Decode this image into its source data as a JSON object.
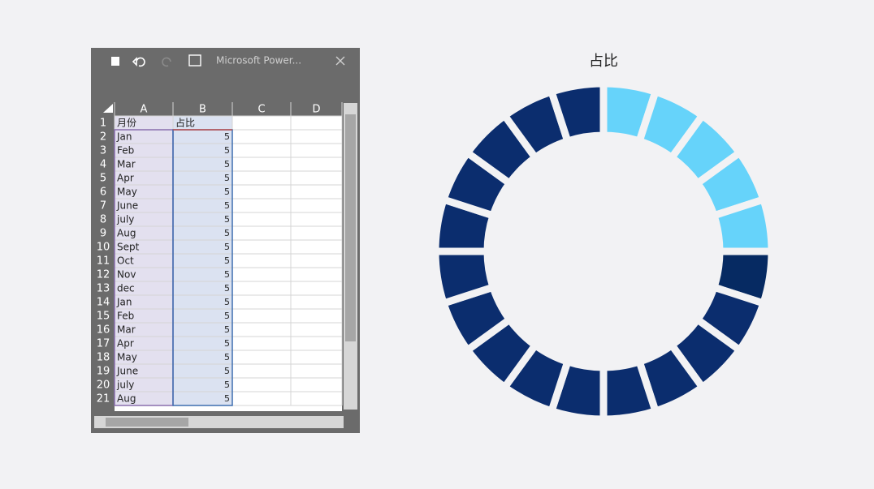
{
  "window": {
    "title": "Microsoft Power..."
  },
  "sheet": {
    "columns": [
      "A",
      "B",
      "C",
      "D"
    ],
    "row_numbers": [
      1,
      2,
      3,
      4,
      5,
      6,
      7,
      8,
      9,
      10,
      11,
      12,
      13,
      14,
      15,
      16,
      17,
      18,
      19,
      20,
      21
    ],
    "headers": [
      "月份",
      "占比"
    ]
  },
  "chart_data": {
    "type": "doughnut",
    "title": "占比",
    "categories": [
      "Jan",
      "Feb",
      "Mar",
      "Apr",
      "May",
      "June",
      "july",
      "Aug",
      "Sept",
      "Oct",
      "Nov",
      "dec",
      "Jan",
      "Feb",
      "Mar",
      "Apr",
      "May",
      "June",
      "july",
      "Aug"
    ],
    "values": [
      5,
      5,
      5,
      5,
      5,
      5,
      5,
      5,
      5,
      5,
      5,
      5,
      5,
      5,
      5,
      5,
      5,
      5,
      5,
      5
    ],
    "colors": [
      "#66d3fa",
      "#66d3fa",
      "#66d3fa",
      "#66d3fa",
      "#66d3fa",
      "#062a62",
      "#0b2d6e",
      "#0b2d6e",
      "#0b2d6e",
      "#0b2d6e",
      "#0b2d6e",
      "#0b2d6e",
      "#0b2d6e",
      "#0b2d6e",
      "#0b2d6e",
      "#0b2d6e",
      "#0b2d6e",
      "#0b2d6e",
      "#0b2d6e",
      "#0b2d6e"
    ]
  }
}
